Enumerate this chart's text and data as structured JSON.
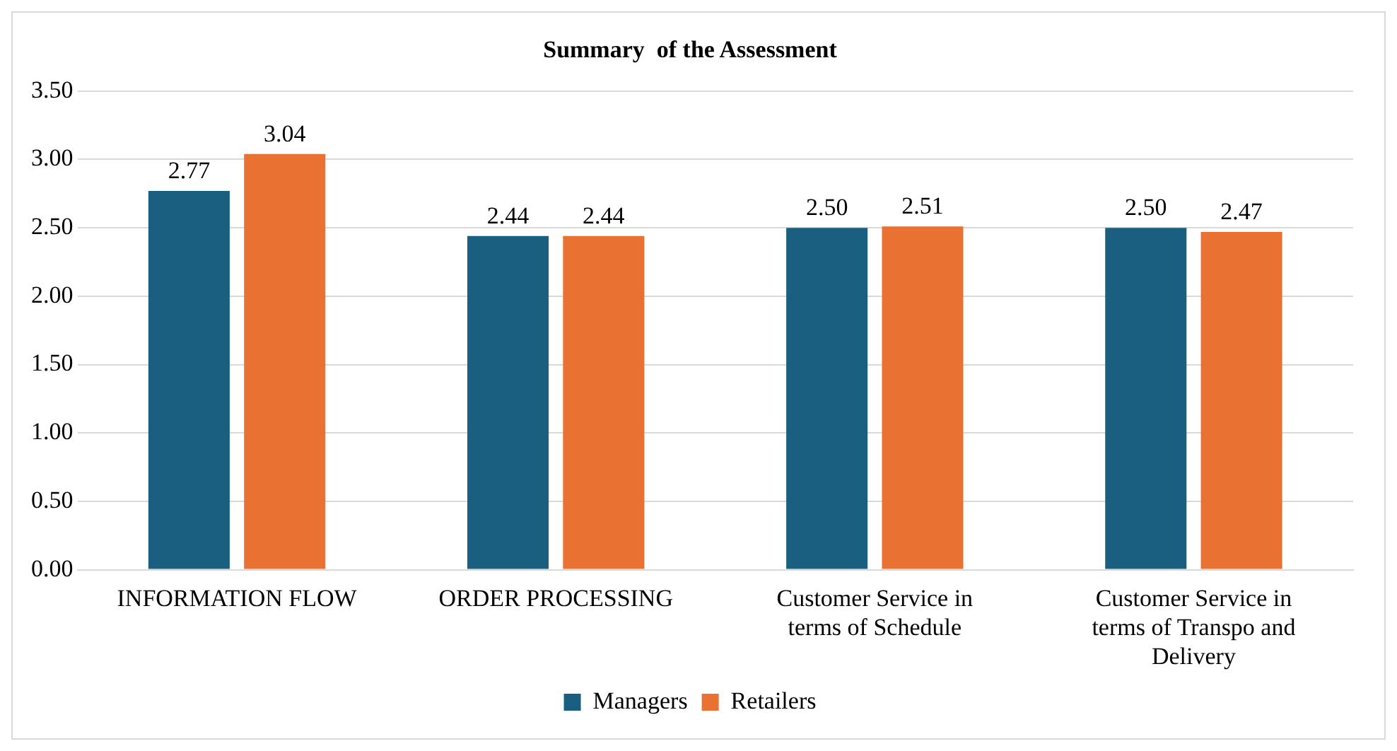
{
  "chart_data": {
    "type": "bar",
    "title": "Summary  of the Assessment",
    "categories": [
      "INFORMATION FLOW",
      "ORDER PROCESSING",
      "Customer Service in terms of Schedule",
      "Customer Service in terms of Transpo and Delivery"
    ],
    "series": [
      {
        "name": "Managers",
        "color": "#1a5e80",
        "values": [
          2.77,
          2.44,
          2.5,
          2.5
        ]
      },
      {
        "name": "Retailers",
        "color": "#e97132",
        "values": [
          3.04,
          2.44,
          2.51,
          2.47
        ]
      }
    ],
    "value_labels": [
      [
        "2.77",
        "2.44",
        "2.50",
        "2.50"
      ],
      [
        "3.04",
        "2.44",
        "2.51",
        "2.47"
      ]
    ],
    "ylim": [
      0,
      3.5
    ],
    "yticks": [
      {
        "value": 0,
        "label": "0.00"
      },
      {
        "value": 0.5,
        "label": "0.50"
      },
      {
        "value": 1,
        "label": "1.00"
      },
      {
        "value": 1.5,
        "label": "1.50"
      },
      {
        "value": 2,
        "label": "2.00"
      },
      {
        "value": 2.5,
        "label": "2.50"
      },
      {
        "value": 3,
        "label": "3.00"
      },
      {
        "value": 3.5,
        "label": "3.50"
      }
    ],
    "grid": "y",
    "legend": "bottom"
  }
}
